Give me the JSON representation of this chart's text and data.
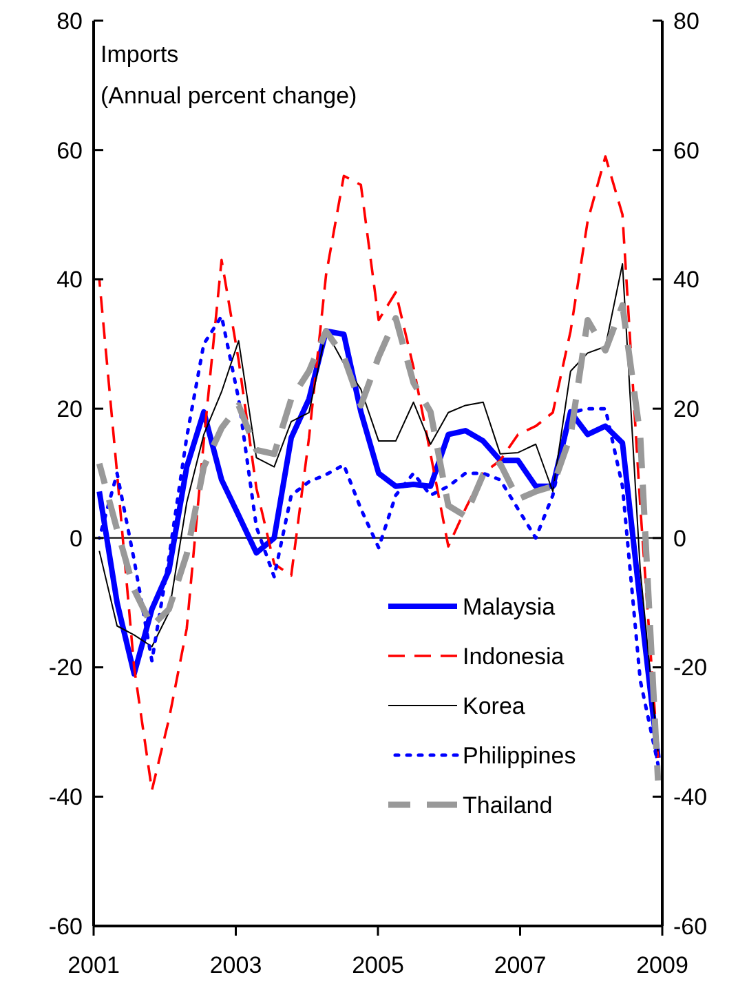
{
  "chart_data": {
    "type": "line",
    "title": "Imports",
    "subtitle": "(Annual percent change)",
    "x": [
      2001.08,
      2001.33,
      2001.57,
      2001.82,
      2002.06,
      2002.31,
      2002.55,
      2002.8,
      2003.04,
      2003.29,
      2003.54,
      2003.78,
      2004.03,
      2004.27,
      2004.52,
      2004.76,
      2005.01,
      2005.25,
      2005.5,
      2005.74,
      2005.99,
      2006.23,
      2006.48,
      2006.72,
      2006.97,
      2007.22,
      2007.46,
      2007.71,
      2007.95,
      2008.2,
      2008.44,
      2008.69,
      2008.94
    ],
    "series": [
      {
        "name": "Malaysia",
        "color": "#0000ff",
        "line_style": "solid",
        "values": [
          7.2,
          -10,
          -21,
          -11,
          -5,
          11,
          19.5,
          9,
          3.5,
          -2.3,
          0,
          15.5,
          21.5,
          32,
          31.5,
          19.5,
          10,
          8,
          8.3,
          8,
          16,
          16.6,
          15,
          12,
          12,
          8,
          8,
          19.5,
          16,
          17.3,
          14.7,
          -10,
          -34
        ]
      },
      {
        "name": "Indonesia",
        "color": "#ff0000",
        "line_style": "dashed",
        "values": [
          40,
          10,
          -20,
          -39,
          -28,
          -14,
          15,
          43,
          27.5,
          7.7,
          -4,
          -5.8,
          15.5,
          40.7,
          56,
          54.6,
          33.7,
          38,
          26.4,
          13,
          -1.3,
          4.5,
          10,
          12,
          16,
          17.3,
          19.4,
          32,
          49,
          59,
          50,
          5,
          -34
        ]
      },
      {
        "name": "Korea",
        "color": "#000000",
        "line_style": "solid",
        "values": [
          -2,
          -13.6,
          -15,
          -16.8,
          -11.5,
          5.5,
          16,
          22.6,
          30.5,
          12.4,
          11,
          18,
          19.4,
          32,
          27,
          23,
          15,
          15,
          21,
          14.5,
          19.4,
          20.5,
          21,
          13,
          13.2,
          14.5,
          7.2,
          25.8,
          28.6,
          29.6,
          42.4,
          -5,
          -33
        ]
      },
      {
        "name": "Philippines",
        "color": "#0000ff",
        "line_style": "dotted",
        "values": [
          0,
          10,
          -3.4,
          -19,
          -3,
          15.6,
          30,
          34.3,
          21.5,
          1.7,
          -6,
          6.6,
          8.7,
          9.8,
          11.3,
          4.5,
          -1.5,
          6.6,
          10,
          6.6,
          8,
          10,
          10,
          9,
          4.5,
          0,
          6.6,
          19.4,
          20,
          20,
          8,
          -22,
          -35
        ]
      },
      {
        "name": "Thailand",
        "color": "#999999",
        "line_style": "dashed",
        "values": [
          11.5,
          1.3,
          -8,
          -13.6,
          -11,
          -2.5,
          11,
          17,
          20.5,
          13.6,
          13,
          21.5,
          25.8,
          32,
          28,
          20.5,
          28,
          34,
          24,
          19.5,
          5,
          3.4,
          9.8,
          11.5,
          6,
          7.2,
          8,
          15.8,
          33.7,
          29,
          36,
          15.8,
          -37.5
        ]
      }
    ],
    "xlim": [
      2001,
      2009
    ],
    "xticks": [
      2001,
      2003,
      2005,
      2007,
      2009
    ],
    "ylim": [
      -60,
      80
    ],
    "yticks": [
      -60,
      -40,
      -20,
      0,
      20,
      40,
      60,
      80
    ],
    "y2lim": [
      -60,
      80
    ],
    "y2ticks": [
      -60,
      -40,
      -20,
      0,
      20,
      40,
      60,
      80
    ],
    "ref_lines": [
      {
        "axis": "y",
        "value": 0,
        "color": "#000000"
      }
    ],
    "legend": "bottom right",
    "grid": false
  }
}
